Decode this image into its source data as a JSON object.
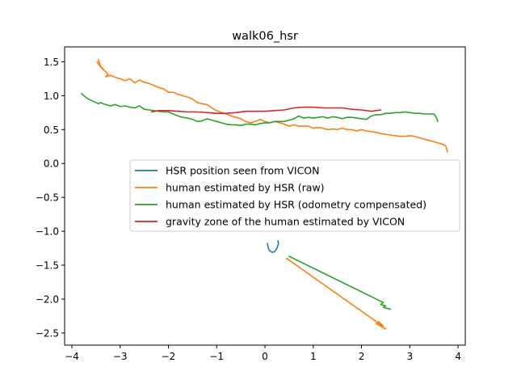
{
  "chart_data": {
    "type": "line",
    "title": "walk06_hsr",
    "xlabel": "",
    "ylabel": "",
    "xlim": [
      -4.15,
      4.15
    ],
    "ylim": [
      -2.68,
      1.72
    ],
    "xticks": [
      -4,
      -3,
      -2,
      -1,
      0,
      1,
      2,
      3,
      4
    ],
    "yticks": [
      1.5,
      1.0,
      0.5,
      0.0,
      -0.5,
      -1.0,
      -1.5,
      -2.0,
      -2.5
    ],
    "xtick_labels": [
      "−4",
      "−3",
      "−2",
      "−1",
      "0",
      "1",
      "2",
      "3",
      "4"
    ],
    "ytick_labels": [
      "1.5",
      "1.0",
      "0.5",
      "0.0",
      "−0.5",
      "−1.0",
      "−1.5",
      "−2.0",
      "−2.5"
    ],
    "grid": false,
    "legend_position": "center",
    "series": [
      {
        "name": "HSR position seen from VICON",
        "color": "#1f77b4",
        "points": [
          [
            0.05,
            -1.18
          ],
          [
            0.07,
            -1.25
          ],
          [
            0.1,
            -1.29
          ],
          [
            0.15,
            -1.31
          ],
          [
            0.2,
            -1.3
          ],
          [
            0.25,
            -1.25
          ],
          [
            0.28,
            -1.18
          ],
          [
            0.27,
            -1.14
          ]
        ]
      },
      {
        "name": "human estimated by HSR (raw)",
        "color": "#ff7f0e",
        "points": [
          [
            -3.45,
            1.53
          ],
          [
            -3.4,
            1.42
          ],
          [
            -3.48,
            1.5
          ],
          [
            -3.35,
            1.38
          ],
          [
            -3.42,
            1.45
          ],
          [
            -3.3,
            1.35
          ],
          [
            -3.25,
            1.32
          ],
          [
            -3.3,
            1.28
          ],
          [
            -3.2,
            1.3
          ],
          [
            -3.1,
            1.27
          ],
          [
            -3.0,
            1.25
          ],
          [
            -2.9,
            1.22
          ],
          [
            -2.8,
            1.25
          ],
          [
            -2.7,
            1.19
          ],
          [
            -2.6,
            1.23
          ],
          [
            -2.5,
            1.2
          ],
          [
            -2.4,
            1.18
          ],
          [
            -2.3,
            1.15
          ],
          [
            -2.2,
            1.12
          ],
          [
            -2.1,
            1.1
          ],
          [
            -2.0,
            1.05
          ],
          [
            -1.9,
            1.05
          ],
          [
            -1.8,
            1.02
          ],
          [
            -1.7,
            1.0
          ],
          [
            -1.6,
            0.98
          ],
          [
            -1.5,
            0.95
          ],
          [
            -1.4,
            0.9
          ],
          [
            -1.3,
            0.88
          ],
          [
            -1.2,
            0.87
          ],
          [
            -1.1,
            0.82
          ],
          [
            -1.0,
            0.78
          ],
          [
            -0.9,
            0.75
          ],
          [
            -0.8,
            0.73
          ],
          [
            -0.7,
            0.7
          ],
          [
            -0.6,
            0.68
          ],
          [
            -0.5,
            0.66
          ],
          [
            -0.4,
            0.62
          ],
          [
            -0.3,
            0.6
          ],
          [
            -0.2,
            0.62
          ],
          [
            -0.1,
            0.65
          ],
          [
            0.0,
            0.62
          ],
          [
            0.1,
            0.6
          ],
          [
            0.2,
            0.62
          ],
          [
            0.3,
            0.6
          ],
          [
            0.4,
            0.58
          ],
          [
            0.5,
            0.55
          ],
          [
            0.6,
            0.57
          ],
          [
            0.7,
            0.55
          ],
          [
            0.8,
            0.55
          ],
          [
            0.9,
            0.55
          ],
          [
            1.0,
            0.52
          ],
          [
            1.1,
            0.53
          ],
          [
            1.2,
            0.52
          ],
          [
            1.3,
            0.5
          ],
          [
            1.4,
            0.51
          ],
          [
            1.5,
            0.5
          ],
          [
            1.6,
            0.52
          ],
          [
            1.7,
            0.5
          ],
          [
            1.8,
            0.5
          ],
          [
            1.9,
            0.48
          ],
          [
            2.0,
            0.5
          ],
          [
            2.1,
            0.48
          ],
          [
            2.2,
            0.47
          ],
          [
            2.3,
            0.46
          ],
          [
            2.4,
            0.44
          ],
          [
            2.5,
            0.43
          ],
          [
            2.6,
            0.42
          ],
          [
            2.7,
            0.41
          ],
          [
            2.8,
            0.4
          ],
          [
            2.9,
            0.4
          ],
          [
            3.0,
            0.41
          ],
          [
            3.1,
            0.4
          ],
          [
            3.2,
            0.38
          ],
          [
            3.3,
            0.36
          ],
          [
            3.4,
            0.34
          ],
          [
            3.5,
            0.32
          ],
          [
            3.6,
            0.3
          ],
          [
            3.7,
            0.28
          ],
          [
            3.75,
            0.25
          ],
          [
            3.78,
            0.17
          ]
        ]
      },
      {
        "name": "human estimated by HSR (odometry compensated)",
        "color": "#2ca02c",
        "points": [
          [
            -3.8,
            1.03
          ],
          [
            -3.7,
            0.97
          ],
          [
            -3.6,
            0.93
          ],
          [
            -3.5,
            0.9
          ],
          [
            -3.45,
            0.88
          ],
          [
            -3.4,
            0.9
          ],
          [
            -3.35,
            0.88
          ],
          [
            -3.3,
            0.87
          ],
          [
            -3.2,
            0.85
          ],
          [
            -3.1,
            0.87
          ],
          [
            -3.0,
            0.84
          ],
          [
            -2.9,
            0.85
          ],
          [
            -2.8,
            0.83
          ],
          [
            -2.7,
            0.82
          ],
          [
            -2.6,
            0.85
          ],
          [
            -2.5,
            0.8
          ],
          [
            -2.4,
            0.79
          ],
          [
            -2.3,
            0.78
          ],
          [
            -2.2,
            0.77
          ],
          [
            -2.1,
            0.76
          ],
          [
            -2.0,
            0.76
          ],
          [
            -1.9,
            0.73
          ],
          [
            -1.8,
            0.7
          ],
          [
            -1.7,
            0.68
          ],
          [
            -1.6,
            0.67
          ],
          [
            -1.5,
            0.65
          ],
          [
            -1.4,
            0.62
          ],
          [
            -1.3,
            0.63
          ],
          [
            -1.2,
            0.66
          ],
          [
            -1.1,
            0.64
          ],
          [
            -1.0,
            0.62
          ],
          [
            -0.9,
            0.6
          ],
          [
            -0.8,
            0.58
          ],
          [
            -0.7,
            0.57
          ],
          [
            -0.6,
            0.57
          ],
          [
            -0.5,
            0.56
          ],
          [
            -0.4,
            0.58
          ],
          [
            -0.3,
            0.58
          ],
          [
            -0.2,
            0.57
          ],
          [
            -0.1,
            0.59
          ],
          [
            0.0,
            0.6
          ],
          [
            0.1,
            0.6
          ],
          [
            0.2,
            0.62
          ],
          [
            0.3,
            0.62
          ],
          [
            0.4,
            0.62
          ],
          [
            0.5,
            0.64
          ],
          [
            0.6,
            0.66
          ],
          [
            0.7,
            0.7
          ],
          [
            0.8,
            0.67
          ],
          [
            0.9,
            0.68
          ],
          [
            1.0,
            0.67
          ],
          [
            1.1,
            0.68
          ],
          [
            1.2,
            0.69
          ],
          [
            1.3,
            0.67
          ],
          [
            1.4,
            0.69
          ],
          [
            1.5,
            0.68
          ],
          [
            1.6,
            0.66
          ],
          [
            1.7,
            0.68
          ],
          [
            1.8,
            0.68
          ],
          [
            1.9,
            0.67
          ],
          [
            2.0,
            0.66
          ],
          [
            2.1,
            0.65
          ],
          [
            2.2,
            0.7
          ],
          [
            2.3,
            0.72
          ],
          [
            2.4,
            0.72
          ],
          [
            2.5,
            0.74
          ],
          [
            2.6,
            0.74
          ],
          [
            2.7,
            0.75
          ],
          [
            2.8,
            0.75
          ],
          [
            2.9,
            0.76
          ],
          [
            3.0,
            0.75
          ],
          [
            3.1,
            0.74
          ],
          [
            3.2,
            0.74
          ],
          [
            3.3,
            0.73
          ],
          [
            3.4,
            0.73
          ],
          [
            3.5,
            0.73
          ],
          [
            3.55,
            0.68
          ],
          [
            3.58,
            0.62
          ]
        ]
      },
      {
        "name": "gravity zone of the human estimated by VICON",
        "color": "#d62728",
        "points": [
          [
            -2.35,
            0.76
          ],
          [
            -2.2,
            0.78
          ],
          [
            -2.0,
            0.78
          ],
          [
            -1.8,
            0.77
          ],
          [
            -1.6,
            0.76
          ],
          [
            -1.4,
            0.76
          ],
          [
            -1.2,
            0.75
          ],
          [
            -1.0,
            0.74
          ],
          [
            -0.8,
            0.74
          ],
          [
            -0.6,
            0.75
          ],
          [
            -0.4,
            0.77
          ],
          [
            -0.2,
            0.77
          ],
          [
            0.0,
            0.77
          ],
          [
            0.2,
            0.78
          ],
          [
            0.4,
            0.79
          ],
          [
            0.6,
            0.82
          ],
          [
            0.8,
            0.83
          ],
          [
            1.0,
            0.83
          ],
          [
            1.2,
            0.82
          ],
          [
            1.4,
            0.82
          ],
          [
            1.6,
            0.82
          ],
          [
            1.8,
            0.8
          ],
          [
            2.0,
            0.79
          ],
          [
            2.2,
            0.77
          ],
          [
            2.4,
            0.79
          ]
        ]
      },
      {
        "name": "",
        "color": "#ff7f0e",
        "points": [
          [
            0.45,
            -1.4
          ],
          [
            2.4,
            -2.38
          ],
          [
            2.35,
            -2.33
          ],
          [
            2.45,
            -2.4
          ],
          [
            2.3,
            -2.36
          ],
          [
            2.5,
            -2.44
          ]
        ]
      },
      {
        "name": "",
        "color": "#2ca02c",
        "points": [
          [
            0.5,
            -1.37
          ],
          [
            2.45,
            -2.05
          ],
          [
            2.4,
            -2.08
          ],
          [
            2.5,
            -2.1
          ],
          [
            2.45,
            -2.12
          ],
          [
            2.6,
            -2.15
          ]
        ]
      }
    ]
  }
}
